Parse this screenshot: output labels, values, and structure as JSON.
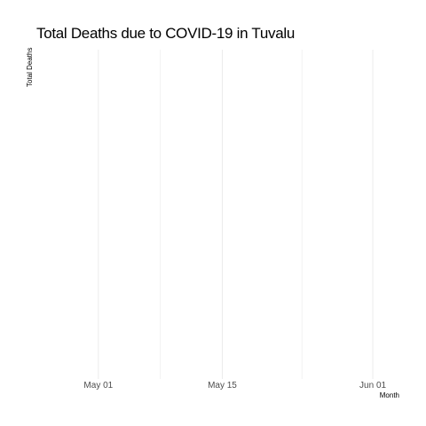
{
  "chart_data": {
    "type": "line",
    "title": "Total Deaths due to COVID-19 in Tuvalu",
    "xlabel": "Month",
    "ylabel": "Total Deaths",
    "x_ticks": [
      "May 01",
      "May 15",
      "Jun 01"
    ],
    "x_tick_dates": [
      "2020-05-01",
      "2020-05-15",
      "2020-06-01"
    ],
    "x_minor_grid_dates": [
      "2020-05-08",
      "2020-05-24"
    ],
    "xlim": [
      "2020-04-24",
      "2020-06-04"
    ],
    "series": [],
    "grid": true,
    "legend": "none",
    "colors": {
      "major_grid": "#ebebeb",
      "minor_grid": "#f2f2f2",
      "tick_text": "#4d4d4d",
      "text": "#000000"
    }
  }
}
